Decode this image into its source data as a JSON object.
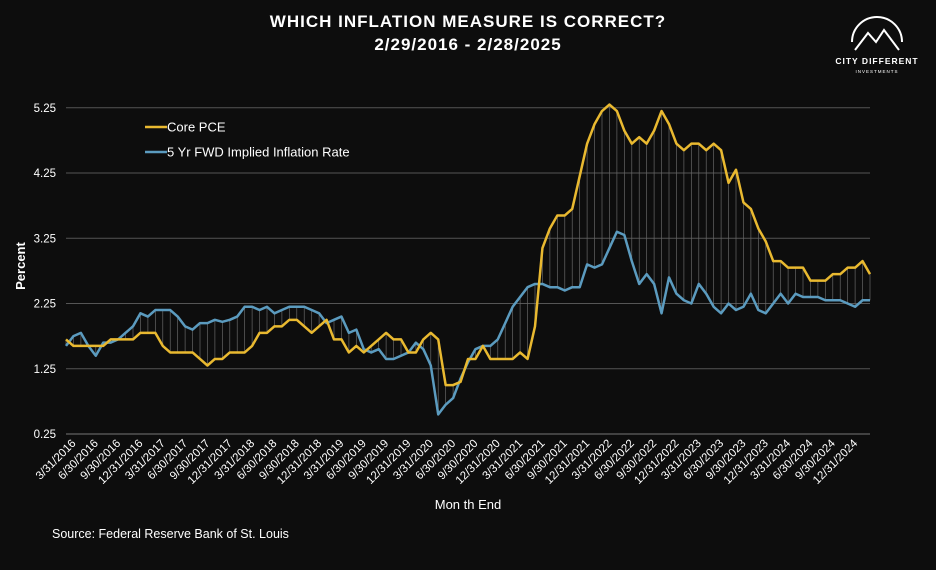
{
  "chart_data": {
    "type": "line",
    "title": "WHICH INFLATION MEASURE IS CORRECT?",
    "subtitle": "2/29/2016 - 2/28/2025",
    "logo": {
      "name": "CITY DIFFERENT",
      "tagline": "INVESTMENTS"
    },
    "y_label": "Percent",
    "x_label": "Mon th End",
    "source": "Source: Federal Reserve Bank of St. Louis",
    "ylim": [
      0.25,
      5.4
    ],
    "yticks": [
      0.25,
      1.25,
      2.25,
      3.25,
      4.25,
      5.25
    ],
    "grid": true,
    "legend": "upper left",
    "categories": [
      null,
      "3/31/2016",
      null,
      null,
      "6/30/2016",
      null,
      null,
      "9/30/2016",
      null,
      null,
      "12/31/2016",
      null,
      null,
      "3/31/2017",
      null,
      null,
      "6/30/2017",
      null,
      null,
      "9/30/2017",
      null,
      null,
      "12/31/2017",
      null,
      null,
      "3/31/2018",
      null,
      null,
      "6/30/2018",
      null,
      null,
      "9/30/2018",
      null,
      null,
      "12/31/2018",
      null,
      null,
      "3/31/2019",
      null,
      null,
      "6/30/2019",
      null,
      null,
      "9/30/2019",
      null,
      null,
      "12/31/2019",
      null,
      null,
      "3/31/2020",
      null,
      null,
      "6/30/2020",
      null,
      null,
      "9/30/2020",
      null,
      null,
      "12/31/2020",
      null,
      null,
      "3/31/2021",
      null,
      null,
      "6/30/2021",
      null,
      null,
      "9/30/2021",
      null,
      null,
      "12/31/2021",
      null,
      null,
      "3/31/2022",
      null,
      null,
      "6/30/2022",
      null,
      null,
      "9/30/2022",
      null,
      null,
      "12/31/2022",
      null,
      null,
      "3/31/2023",
      null,
      null,
      "6/30/2023",
      null,
      null,
      "9/30/2023",
      null,
      null,
      "12/31/2023",
      null,
      null,
      "3/31/2024",
      null,
      null,
      "6/30/2024",
      null,
      null,
      "9/30/2024",
      null,
      null,
      "12/31/2024",
      null,
      null
    ],
    "series": [
      {
        "name": "Core PCE",
        "color": "#e9b930",
        "values": [
          1.7,
          1.6,
          1.6,
          1.6,
          1.6,
          1.6,
          1.7,
          1.7,
          1.7,
          1.7,
          1.8,
          1.8,
          1.8,
          1.6,
          1.5,
          1.5,
          1.5,
          1.5,
          1.4,
          1.3,
          1.4,
          1.4,
          1.5,
          1.5,
          1.5,
          1.6,
          1.8,
          1.8,
          1.9,
          1.9,
          2.0,
          2.0,
          1.9,
          1.8,
          1.9,
          2.0,
          1.7,
          1.7,
          1.5,
          1.6,
          1.5,
          1.6,
          1.7,
          1.8,
          1.7,
          1.7,
          1.5,
          1.5,
          1.7,
          1.8,
          1.7,
          1.0,
          1.0,
          1.05,
          1.4,
          1.4,
          1.6,
          1.4,
          1.4,
          1.4,
          1.4,
          1.5,
          1.4,
          1.9,
          3.1,
          3.4,
          3.6,
          3.6,
          3.7,
          4.2,
          4.7,
          5.0,
          5.2,
          5.3,
          5.2,
          4.9,
          4.7,
          4.8,
          4.7,
          4.9,
          5.2,
          5.0,
          4.7,
          4.6,
          4.7,
          4.7,
          4.6,
          4.7,
          4.6,
          4.1,
          4.3,
          3.8,
          3.7,
          3.4,
          3.2,
          2.9,
          2.9,
          2.8,
          2.8,
          2.8,
          2.6,
          2.6,
          2.6,
          2.7,
          2.7,
          2.8,
          2.8,
          2.9,
          2.7
        ]
      },
      {
        "name": "5 Yr FWD Implied Inflation Rate",
        "color": "#5b9bbf",
        "values": [
          1.6,
          1.75,
          1.8,
          1.6,
          1.45,
          1.65,
          1.65,
          1.7,
          1.8,
          1.9,
          2.1,
          2.05,
          2.15,
          2.15,
          2.15,
          2.05,
          1.9,
          1.85,
          1.95,
          1.95,
          2.0,
          1.97,
          2.0,
          2.05,
          2.2,
          2.2,
          2.15,
          2.2,
          2.1,
          2.15,
          2.2,
          2.2,
          2.2,
          2.15,
          2.1,
          1.95,
          2.0,
          2.05,
          1.8,
          1.85,
          1.55,
          1.5,
          1.55,
          1.4,
          1.4,
          1.45,
          1.5,
          1.65,
          1.55,
          1.3,
          0.55,
          0.7,
          0.8,
          1.1,
          1.35,
          1.55,
          1.6,
          1.6,
          1.7,
          1.95,
          2.2,
          2.35,
          2.5,
          2.55,
          2.55,
          2.5,
          2.5,
          2.45,
          2.5,
          2.5,
          2.85,
          2.8,
          2.85,
          3.1,
          3.35,
          3.3,
          2.9,
          2.55,
          2.7,
          2.55,
          2.1,
          2.65,
          2.4,
          2.3,
          2.25,
          2.55,
          2.4,
          2.2,
          2.1,
          2.25,
          2.15,
          2.2,
          2.4,
          2.15,
          2.1,
          2.25,
          2.4,
          2.25,
          2.4,
          2.35,
          2.35,
          2.35,
          2.3,
          2.3,
          2.3,
          2.25,
          2.2,
          2.3,
          2.3
        ]
      }
    ]
  }
}
